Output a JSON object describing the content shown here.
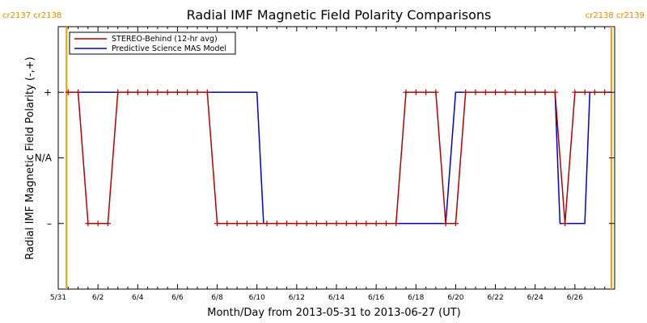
{
  "chart_data": {
    "type": "line",
    "title": "Radial IMF Magnetic Field Polarity Comparisons",
    "xlabel": "Month/Day from 2013-05-31 to 2013-06-27 (UT)",
    "ylabel": "Radial IMF Magnetic Field Polarity (-,+)",
    "x_range": [
      "2013-05-31",
      "2013-06-28"
    ],
    "x_ticks": [
      {
        "date": "2013-05-31",
        "label": "5/31"
      },
      {
        "date": "2013-06-02",
        "label": "6/2"
      },
      {
        "date": "2013-06-04",
        "label": "6/4"
      },
      {
        "date": "2013-06-06",
        "label": "6/6"
      },
      {
        "date": "2013-06-08",
        "label": "6/8"
      },
      {
        "date": "2013-06-10",
        "label": "6/10"
      },
      {
        "date": "2013-06-12",
        "label": "6/12"
      },
      {
        "date": "2013-06-14",
        "label": "6/14"
      },
      {
        "date": "2013-06-16",
        "label": "6/16"
      },
      {
        "date": "2013-06-18",
        "label": "6/18"
      },
      {
        "date": "2013-06-20",
        "label": "6/20"
      },
      {
        "date": "2013-06-22",
        "label": "6/22"
      },
      {
        "date": "2013-06-24",
        "label": "6/24"
      },
      {
        "date": "2013-06-26",
        "label": "6/26"
      }
    ],
    "y_levels": [
      {
        "value": 1,
        "label": "+"
      },
      {
        "value": 0,
        "label": "N/A"
      },
      {
        "value": -1,
        "label": "–"
      }
    ],
    "ylim": [
      -2,
      2
    ],
    "legend_position": "top-left",
    "grid": false,
    "carrington_markers": [
      {
        "date": "2013-05-31 10:00",
        "labels": [
          "cr2137",
          "cr2138"
        ]
      },
      {
        "date": "2013-06-27 20:00",
        "labels": [
          "cr2138",
          "cr2139"
        ]
      }
    ],
    "colors": {
      "stereo": "#b00000",
      "mas": "#0000cc",
      "cr_line": "#ff9900",
      "cr_text": "#e08a00"
    },
    "series": [
      {
        "name": "STEREO-Behind (12-hr avg)",
        "marker": "plus",
        "points": [
          [
            "2013-05-31 12:00",
            1
          ],
          [
            "2013-06-01 00:00",
            1
          ],
          [
            "2013-06-01 12:00",
            -1
          ],
          [
            "2013-06-02 00:00",
            -1
          ],
          [
            "2013-06-02 12:00",
            -1
          ],
          [
            "2013-06-03 00:00",
            1
          ],
          [
            "2013-06-03 12:00",
            1
          ],
          [
            "2013-06-04 00:00",
            1
          ],
          [
            "2013-06-04 12:00",
            1
          ],
          [
            "2013-06-05 00:00",
            1
          ],
          [
            "2013-06-05 12:00",
            1
          ],
          [
            "2013-06-06 00:00",
            1
          ],
          [
            "2013-06-06 12:00",
            1
          ],
          [
            "2013-06-07 00:00",
            1
          ],
          [
            "2013-06-07 12:00",
            1
          ],
          [
            "2013-06-08 00:00",
            -1
          ],
          [
            "2013-06-08 12:00",
            -1
          ],
          [
            "2013-06-09 00:00",
            -1
          ],
          [
            "2013-06-09 12:00",
            -1
          ],
          [
            "2013-06-10 00:00",
            -1
          ],
          [
            "2013-06-10 12:00",
            -1
          ],
          [
            "2013-06-11 00:00",
            -1
          ],
          [
            "2013-06-11 12:00",
            -1
          ],
          [
            "2013-06-12 00:00",
            -1
          ],
          [
            "2013-06-12 12:00",
            -1
          ],
          [
            "2013-06-13 00:00",
            -1
          ],
          [
            "2013-06-13 12:00",
            -1
          ],
          [
            "2013-06-14 00:00",
            -1
          ],
          [
            "2013-06-14 12:00",
            -1
          ],
          [
            "2013-06-15 00:00",
            -1
          ],
          [
            "2013-06-15 12:00",
            -1
          ],
          [
            "2013-06-16 00:00",
            -1
          ],
          [
            "2013-06-16 12:00",
            -1
          ],
          [
            "2013-06-17 00:00",
            -1
          ],
          [
            "2013-06-17 12:00",
            1
          ],
          [
            "2013-06-18 00:00",
            1
          ],
          [
            "2013-06-18 12:00",
            1
          ],
          [
            "2013-06-19 00:00",
            1
          ],
          [
            "2013-06-19 12:00",
            -1
          ],
          [
            "2013-06-20 00:00",
            -1
          ],
          [
            "2013-06-20 12:00",
            1
          ],
          [
            "2013-06-21 00:00",
            1
          ],
          [
            "2013-06-21 12:00",
            1
          ],
          [
            "2013-06-22 00:00",
            1
          ],
          [
            "2013-06-22 12:00",
            1
          ],
          [
            "2013-06-23 00:00",
            1
          ],
          [
            "2013-06-23 12:00",
            1
          ],
          [
            "2013-06-24 00:00",
            1
          ],
          [
            "2013-06-24 12:00",
            1
          ],
          [
            "2013-06-25 00:00",
            1
          ],
          [
            "2013-06-25 12:00",
            -1
          ],
          [
            "2013-06-26 00:00",
            1
          ],
          [
            "2013-06-26 12:00",
            1
          ],
          [
            "2013-06-27 00:00",
            1
          ],
          [
            "2013-06-27 12:00",
            1
          ]
        ]
      },
      {
        "name": "Predictive Science MAS Model",
        "marker": "none",
        "points": [
          [
            "2013-05-31 10:00",
            1
          ],
          [
            "2013-06-10 00:00",
            1
          ],
          [
            "2013-06-10 08:00",
            -1
          ],
          [
            "2013-06-19 12:00",
            -1
          ],
          [
            "2013-06-20 00:00",
            1
          ],
          [
            "2013-06-25 00:00",
            1
          ],
          [
            "2013-06-25 06:00",
            -1
          ],
          [
            "2013-06-26 12:00",
            -1
          ],
          [
            "2013-06-26 18:00",
            1
          ],
          [
            "2013-06-27 20:00",
            1
          ]
        ]
      }
    ]
  }
}
